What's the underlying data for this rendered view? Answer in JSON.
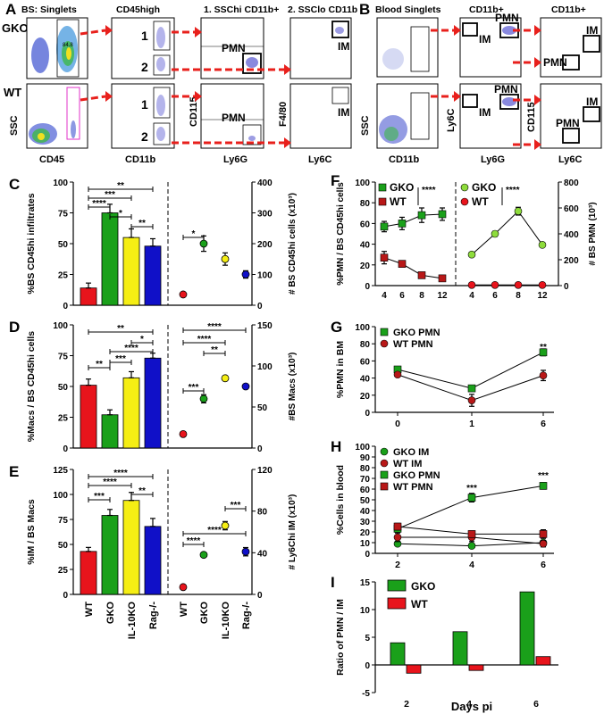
{
  "colors": {
    "red": "#e8141c",
    "green": "#1aa01a",
    "yellow": "#f5ee14",
    "blue": "#1010c8",
    "lightgreen": "#8edc3c",
    "arrow": "#e8201c",
    "darkred": "#b81818"
  },
  "panelA": {
    "letter": "A",
    "row_gko": "GKO",
    "row_wt": "WT",
    "col1_title": "BS: Singlets",
    "col2_title": "CD45high",
    "col3_title": "1. SSChi CD11b+",
    "col4_title": "2. SSClo CD11b+",
    "x1": "CD45",
    "x2": "CD11b",
    "x3": "Ly6G",
    "x4": "Ly6C",
    "y1": "SSC",
    "y3": "CD115",
    "y4": "F4/80",
    "gate1": "1",
    "gate2": "2",
    "pmn": "PMN",
    "im": "IM",
    "gko_singlet_pct": "84.8"
  },
  "panelB": {
    "letter": "B",
    "col1_title": "Blood Singlets",
    "col2_title": "CD11b+",
    "col3_title": "CD11b+",
    "x1": "CD11b",
    "x2": "Ly6G",
    "x3": "Ly6C",
    "y1": "SSC",
    "y2": "Ly6C",
    "y3": "CD115",
    "pmn": "PMN",
    "im": "IM"
  },
  "chart_data": [
    {
      "id": "C",
      "letter": "C",
      "type": "bar",
      "categories": [
        "WT",
        "GKO",
        "IL-10KO",
        "Rag-/-"
      ],
      "bar_values": [
        14,
        75,
        55,
        48
      ],
      "bar_errors": [
        4,
        7,
        7,
        6
      ],
      "ylabel_left": "%BS CD45hi infiltrates",
      "ylim_left": [
        0,
        100
      ],
      "yticks_left": [
        "0",
        "25",
        "50",
        "75",
        "100"
      ],
      "dot_values": [
        35,
        200,
        150,
        100
      ],
      "dot_errors": [
        6,
        25,
        20,
        12
      ],
      "ylabel_right": "# BS CD45hi cells (x10³)",
      "ylim_right": [
        0,
        400
      ],
      "yticks_right": [
        "0",
        "100",
        "200",
        "300",
        "400"
      ],
      "sig_labels": [
        "**",
        "***",
        "****",
        "*",
        "**",
        "*"
      ]
    },
    {
      "id": "D",
      "letter": "D",
      "type": "bar",
      "categories": [
        "WT",
        "GKO",
        "IL-10KO",
        "Rag-/-"
      ],
      "bar_values": [
        51,
        27,
        57,
        73
      ],
      "bar_errors": [
        5,
        4,
        5,
        4
      ],
      "ylabel_left": "%Macs / BS CD45hi cells",
      "ylim_left": [
        0,
        100
      ],
      "yticks_left": [
        "0",
        "25",
        "50",
        "75",
        "100"
      ],
      "dot_values": [
        17,
        60,
        85,
        75
      ],
      "dot_errors": [
        2,
        5,
        3,
        2
      ],
      "ylabel_right": "#BS Macs (x10³)",
      "ylim_right": [
        0,
        150
      ],
      "yticks_right": [
        "0",
        "50",
        "100",
        "150"
      ],
      "sig_labels": [
        "**",
        "*",
        "****",
        "**",
        "***",
        "****",
        "****",
        "**",
        "***"
      ]
    },
    {
      "id": "E",
      "letter": "E",
      "type": "bar",
      "categories": [
        "WT",
        "GKO",
        "IL-10KO",
        "Rag-/-"
      ],
      "bar_values": [
        43,
        79,
        94,
        68
      ],
      "bar_errors": [
        4,
        6,
        8,
        8
      ],
      "ylabel_left": "%IM / BS Macs",
      "ylim_left": [
        0,
        125
      ],
      "yticks_left": [
        "0",
        "25",
        "50",
        "75",
        "100",
        "125"
      ],
      "dot_values": [
        7,
        38,
        66,
        41
      ],
      "dot_errors": [
        1,
        2,
        4,
        4
      ],
      "ylabel_right": "# Ly6Chi IM (x10³)",
      "ylim_right": [
        0,
        120
      ],
      "yticks_right": [
        "0",
        "40",
        "80",
        "120"
      ],
      "sig_labels": [
        "****",
        "****",
        "***",
        "**",
        "****",
        "***",
        "****"
      ]
    },
    {
      "id": "F",
      "letter": "F",
      "type": "line",
      "x": [
        4,
        6,
        8,
        12
      ],
      "xticks": [
        "4",
        "6",
        "8",
        "12"
      ],
      "left_series": [
        {
          "name": "GKO",
          "values": [
            57,
            60,
            68,
            69
          ],
          "errors": [
            5,
            6,
            7,
            6
          ]
        },
        {
          "name": "WT",
          "values": [
            27,
            21,
            10,
            7
          ],
          "errors": [
            6,
            3,
            2,
            1
          ]
        }
      ],
      "right_series": [
        {
          "name": "GKO",
          "values": [
            240,
            400,
            575,
            315
          ],
          "errors": [
            15,
            20,
            30,
            15
          ]
        },
        {
          "name": "WT",
          "values": [
            5,
            5,
            5,
            5
          ],
          "errors": [
            2,
            2,
            2,
            2
          ]
        }
      ],
      "ylabel_left": "%PMN / BS CD45hi cells",
      "ylim_left": [
        0,
        100
      ],
      "yticks_left": [
        "0",
        "20",
        "40",
        "60",
        "80",
        "100"
      ],
      "ylabel_right": "# BS PMN (10³)",
      "ylim_right": [
        0,
        800
      ],
      "yticks_right": [
        "0",
        "200",
        "400",
        "600",
        "800"
      ],
      "legend_left": [
        "GKO",
        "WT"
      ],
      "legend_right": [
        "GKO",
        "WT"
      ],
      "sig_labels": [
        "****",
        "****"
      ]
    },
    {
      "id": "G",
      "letter": "G",
      "type": "line",
      "x": [
        0,
        1,
        6
      ],
      "xticks": [
        "0",
        "1",
        "6"
      ],
      "series": [
        {
          "name": "GKO PMN",
          "values": [
            50,
            28,
            70
          ],
          "errors": [
            2,
            3,
            4
          ]
        },
        {
          "name": "WT PMN",
          "values": [
            44,
            14,
            43
          ],
          "errors": [
            2,
            7,
            6
          ]
        }
      ],
      "ylabel": "%PMN in BM",
      "ylim": [
        0,
        100
      ],
      "yticks": [
        "0",
        "20",
        "40",
        "60",
        "80",
        "100"
      ],
      "sig_labels": [
        "**"
      ]
    },
    {
      "id": "H",
      "letter": "H",
      "type": "line",
      "x": [
        2,
        4,
        6
      ],
      "xticks": [
        "2",
        "4",
        "6"
      ],
      "series": [
        {
          "name": "GKO IM",
          "values": [
            9,
            7,
            10
          ],
          "errors": [
            2,
            1,
            1
          ]
        },
        {
          "name": "WT IM",
          "values": [
            15,
            15,
            9
          ],
          "errors": [
            4,
            4,
            3
          ]
        },
        {
          "name": "GKO PMN",
          "values": [
            23,
            52,
            63
          ],
          "errors": [
            3,
            4,
            3
          ]
        },
        {
          "name": "WT PMN",
          "values": [
            25,
            18,
            18
          ],
          "errors": [
            3,
            3,
            4
          ]
        }
      ],
      "ylabel": "%Cells in blood",
      "ylim": [
        0,
        100
      ],
      "yticks": [
        "0",
        "10",
        "20",
        "30",
        "40",
        "50",
        "60",
        "70",
        "80",
        "90",
        "100"
      ],
      "sig_labels": [
        "***",
        "***"
      ]
    },
    {
      "id": "I",
      "letter": "I",
      "type": "bar",
      "categories": [
        "2",
        "4",
        "6"
      ],
      "series": [
        {
          "name": "GKO",
          "values": [
            4,
            6,
            13.2
          ]
        },
        {
          "name": "WT",
          "values": [
            -1.5,
            -1,
            1.5
          ]
        }
      ],
      "ylabel": "Ratio of PMN / IM",
      "xlabel": "Days pi",
      "ylim": [
        -5,
        15
      ],
      "yticks": [
        "-5",
        "0",
        "5",
        "10",
        "15"
      ]
    }
  ]
}
